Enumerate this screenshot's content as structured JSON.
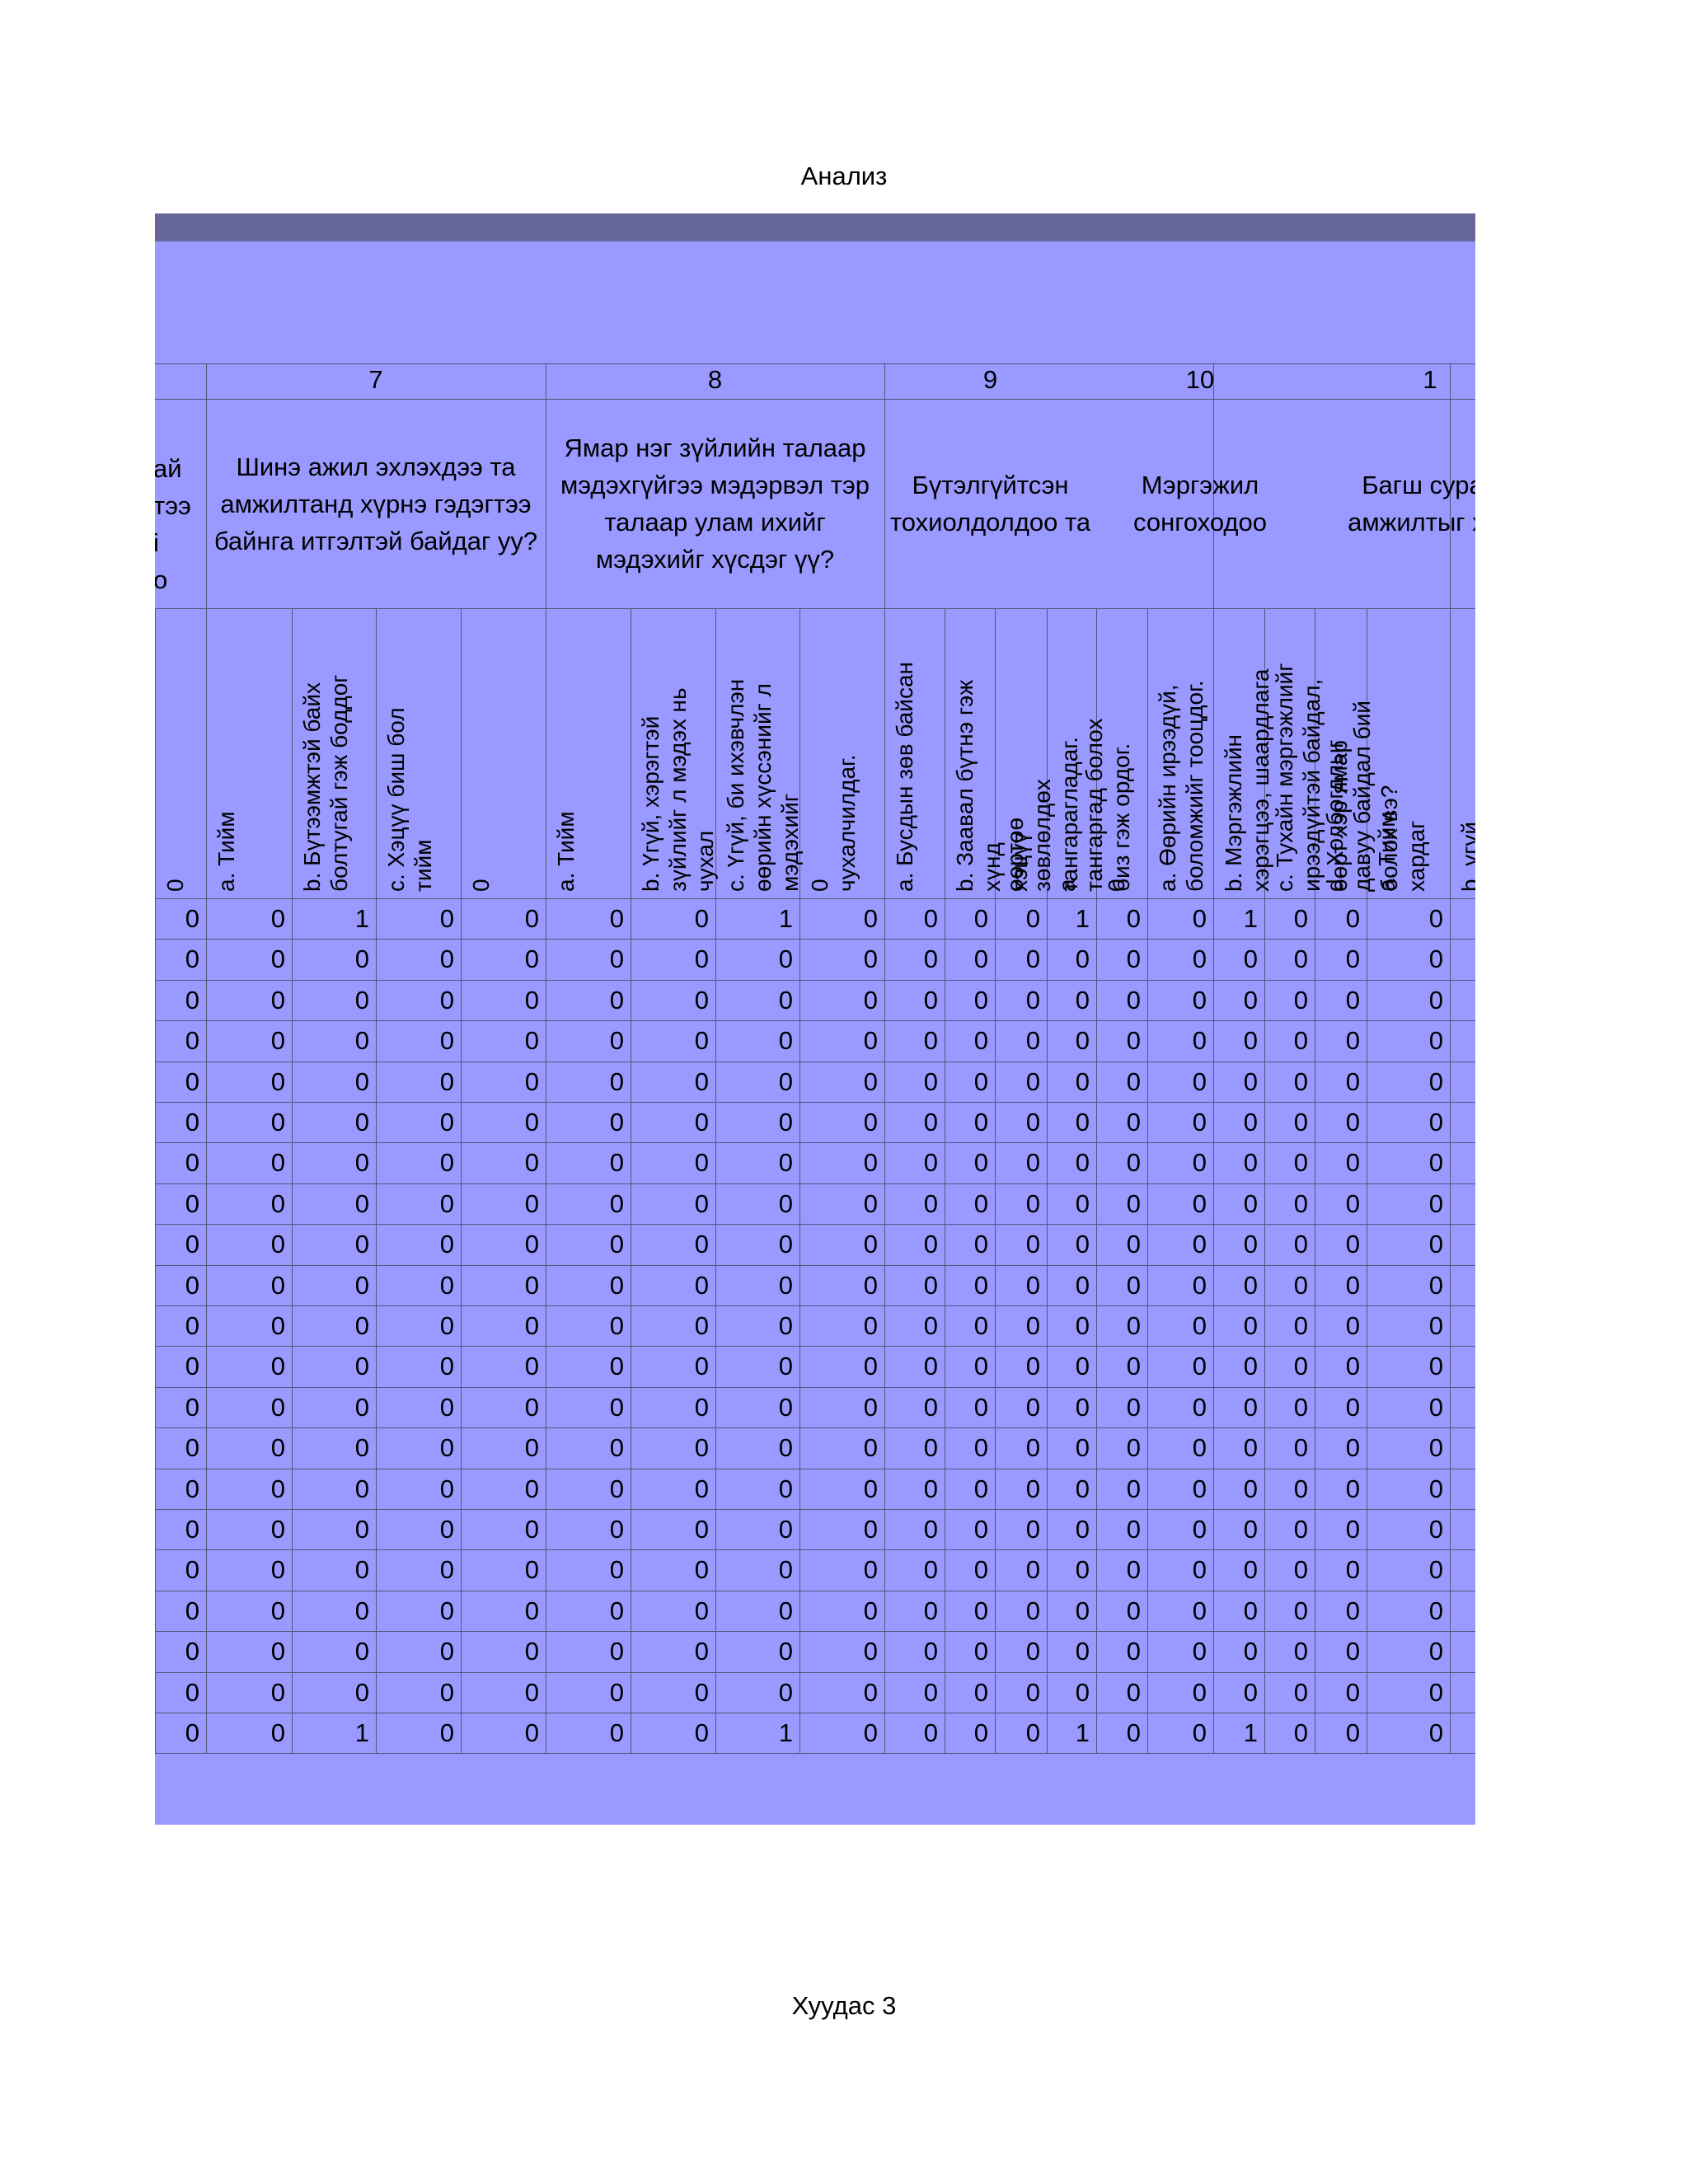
{
  "header": {
    "title": "Анализ"
  },
  "footer": {
    "page_label": "Хуудас 3"
  },
  "table": {
    "questions": [
      {
        "number": "7",
        "text": "Шинэ ажил эхлэхдээ та амжилтанд хүрнэ гэдэгтээ байнга итгэлтэй байдаг уу?"
      },
      {
        "number": "8",
        "text": "Ямар нэг зүйлийн талаар мэдэхгүйгээ мэдэрвэл тэр талаар улам ихийг мэдэхийг хүсдэг үү?"
      },
      {
        "number": "9",
        "text": "Бүтэлгүйтсэн тохиолдолдоо та"
      },
      {
        "number": "10",
        "text": "Мэргэжил сонгоходоо"
      },
      {
        "number": "1",
        "text": "Багш сурал амжилтыг хэл"
      }
    ],
    "partial_question_fragments": [
      "ай",
      "тээ",
      "і",
      "о"
    ],
    "options": [
      "0",
      "a. Тийм",
      "b. Бүтээмжтэй байх\nболтугай гэж боддог",
      "c. Хэцүү биш бол\nтийм",
      "0",
      "a. Тийм",
      "b. Үгүй, хэрэгтэй\nзүйлийг л мэдэх нь\nчухал",
      "c. Үгүй, би ихэвчлэн\nөөрийн хүссэнийг л\nмэдэхийг",
      "0\nчухалчилдаг.",
      "a. Бусдын зөв байсан",
      "b. Заавал бүтнэ гэж\nхүнд\nхэцүү",
      "өөртөө\nзөвлөлдөх\nтангарагладаг.",
      "a\nтангаргад болох\nбиз гэж ордог.",
      "0",
      "a. Өөрийн ирээдүй,\nболомжийг тооцдог.",
      "b. Мэргэжлийн\nхэрэгцээ, шаардлага",
      "c. Тухайн мэргэжлийг\nирээдүйтэй байдал,\nөөрт хэр ямар",
      "d. Холбогдлыг\nдавуу байдал бий\nболох вэ?\nхардаг",
      "a. Тийм",
      "b. үгүй"
    ],
    "rows": [
      [
        0,
        0,
        1,
        0,
        0,
        0,
        0,
        1,
        0,
        0,
        0,
        0,
        1,
        0,
        0,
        1,
        0,
        0,
        0
      ],
      [
        0,
        0,
        0,
        0,
        0,
        0,
        0,
        0,
        0,
        0,
        0,
        0,
        0,
        0,
        0,
        0,
        0,
        0,
        0
      ],
      [
        0,
        0,
        0,
        0,
        0,
        0,
        0,
        0,
        0,
        0,
        0,
        0,
        0,
        0,
        0,
        0,
        0,
        0,
        0
      ],
      [
        0,
        0,
        0,
        0,
        0,
        0,
        0,
        0,
        0,
        0,
        0,
        0,
        0,
        0,
        0,
        0,
        0,
        0,
        0
      ],
      [
        0,
        0,
        0,
        0,
        0,
        0,
        0,
        0,
        0,
        0,
        0,
        0,
        0,
        0,
        0,
        0,
        0,
        0,
        0
      ],
      [
        0,
        0,
        0,
        0,
        0,
        0,
        0,
        0,
        0,
        0,
        0,
        0,
        0,
        0,
        0,
        0,
        0,
        0,
        0
      ],
      [
        0,
        0,
        0,
        0,
        0,
        0,
        0,
        0,
        0,
        0,
        0,
        0,
        0,
        0,
        0,
        0,
        0,
        0,
        0
      ],
      [
        0,
        0,
        0,
        0,
        0,
        0,
        0,
        0,
        0,
        0,
        0,
        0,
        0,
        0,
        0,
        0,
        0,
        0,
        0
      ],
      [
        0,
        0,
        0,
        0,
        0,
        0,
        0,
        0,
        0,
        0,
        0,
        0,
        0,
        0,
        0,
        0,
        0,
        0,
        0
      ],
      [
        0,
        0,
        0,
        0,
        0,
        0,
        0,
        0,
        0,
        0,
        0,
        0,
        0,
        0,
        0,
        0,
        0,
        0,
        0
      ],
      [
        0,
        0,
        0,
        0,
        0,
        0,
        0,
        0,
        0,
        0,
        0,
        0,
        0,
        0,
        0,
        0,
        0,
        0,
        0
      ],
      [
        0,
        0,
        0,
        0,
        0,
        0,
        0,
        0,
        0,
        0,
        0,
        0,
        0,
        0,
        0,
        0,
        0,
        0,
        0
      ],
      [
        0,
        0,
        0,
        0,
        0,
        0,
        0,
        0,
        0,
        0,
        0,
        0,
        0,
        0,
        0,
        0,
        0,
        0,
        0
      ],
      [
        0,
        0,
        0,
        0,
        0,
        0,
        0,
        0,
        0,
        0,
        0,
        0,
        0,
        0,
        0,
        0,
        0,
        0,
        0
      ],
      [
        0,
        0,
        0,
        0,
        0,
        0,
        0,
        0,
        0,
        0,
        0,
        0,
        0,
        0,
        0,
        0,
        0,
        0,
        0
      ],
      [
        0,
        0,
        0,
        0,
        0,
        0,
        0,
        0,
        0,
        0,
        0,
        0,
        0,
        0,
        0,
        0,
        0,
        0,
        0
      ],
      [
        0,
        0,
        0,
        0,
        0,
        0,
        0,
        0,
        0,
        0,
        0,
        0,
        0,
        0,
        0,
        0,
        0,
        0,
        0
      ],
      [
        0,
        0,
        0,
        0,
        0,
        0,
        0,
        0,
        0,
        0,
        0,
        0,
        0,
        0,
        0,
        0,
        0,
        0,
        0
      ],
      [
        0,
        0,
        0,
        0,
        0,
        0,
        0,
        0,
        0,
        0,
        0,
        0,
        0,
        0,
        0,
        0,
        0,
        0,
        0
      ],
      [
        0,
        0,
        0,
        0,
        0,
        0,
        0,
        0,
        0,
        0,
        0,
        0,
        0,
        0,
        0,
        0,
        0,
        0,
        0
      ],
      [
        0,
        0,
        1,
        0,
        0,
        0,
        0,
        1,
        0,
        0,
        0,
        0,
        1,
        0,
        0,
        1,
        0,
        0,
        0
      ]
    ]
  },
  "colors": {
    "sheet_bg": "#9999ff",
    "top_bar": "#666699",
    "grid": "#555577"
  }
}
